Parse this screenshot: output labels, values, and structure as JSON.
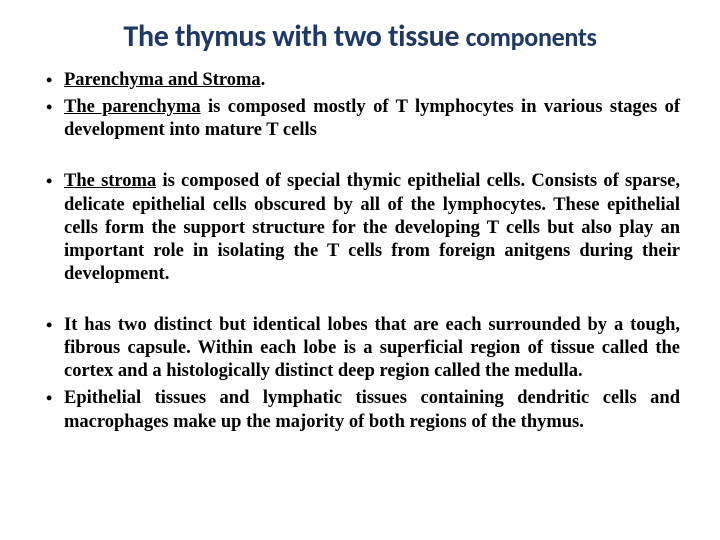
{
  "title_main": "The thymus with two tissue ",
  "title_comp": "components",
  "bullets": {
    "b1a": "Parenchyma and Stroma",
    "b1b_u": "The parenchyma",
    "b1b_rest": " is composed mostly of T lymphocytes in various stages of development into mature T cells",
    "b2_u": "The stroma",
    "b2_rest": " is composed of special thymic epithelial cells. Consists of sparse, delicate epithelial cells obscured by all of the lymphocytes. These epithelial cells form the support structure for the developing T cells but also play an important role in isolating the T cells from foreign anitgens during their development.",
    "b3": "It has two distinct but identical lobes that are each surrounded by a tough, fibrous capsule. Within each lobe is a superficial region of tissue called the cortex and a histologically distinct deep region called the medulla.",
    "b4": "Epithelial tissues and lymphatic tissues containing dendritic cells and macrophages make up the majority of both regions of the thymus."
  },
  "colors": {
    "title": "#1f3864",
    "text": "#000000",
    "background": "#ffffff"
  },
  "fonts": {
    "title_family": "Calibri",
    "body_family": "Georgia",
    "title_size_pt": 22,
    "body_size_pt": 14
  }
}
